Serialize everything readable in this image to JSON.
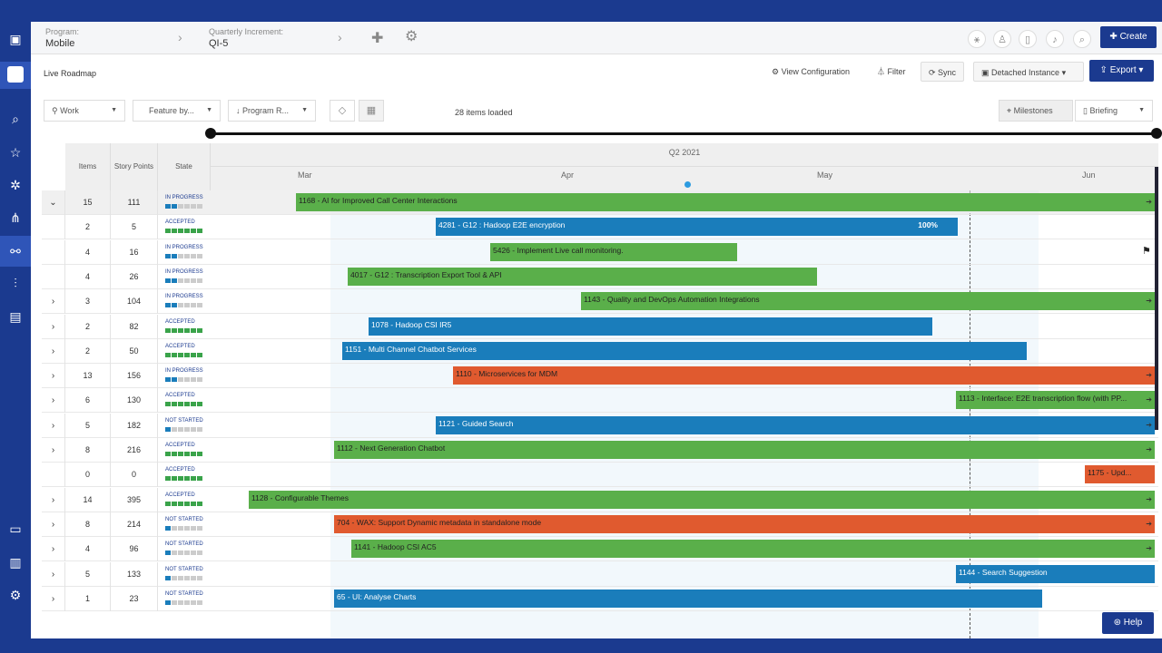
{
  "header": {
    "program_label": "Program:",
    "program_value": "Mobile",
    "qi_label": "Quarterly Increment:",
    "qi_value": "QI-5",
    "create_label": "Create"
  },
  "subheader": {
    "page_title": "Live Roadmap",
    "view_config": "View Configuration",
    "filter": "Filter",
    "sync": "Sync",
    "detached": "Detached Instance",
    "export": "Export"
  },
  "toolbar": {
    "work": "Work",
    "feature_by": "Feature by...",
    "program_r": "Program R...",
    "items_loaded": "28 items loaded",
    "milestones": "Milestones",
    "briefing": "Briefing"
  },
  "grid": {
    "col_items": "Items",
    "col_sp": "Story Points",
    "col_state": "State",
    "quarter": "Q2 2021",
    "months": [
      "Mar",
      "Apr",
      "May",
      "Jun"
    ]
  },
  "rows": [
    {
      "items": "15",
      "sp": "111",
      "state": "IN PROGRESS",
      "expand": "⌄",
      "bar": "1168 - AI for Improved Call Center Interactions",
      "color": "green"
    },
    {
      "items": "2",
      "sp": "5",
      "state": "ACCEPTED",
      "expand": "",
      "bar": "4281 - G12 : Hadoop E2E encryption",
      "color": "blue",
      "pct": "100%"
    },
    {
      "items": "4",
      "sp": "16",
      "state": "IN PROGRESS",
      "expand": "",
      "bar": "5426 - Implement Live call monitoring.",
      "color": "green"
    },
    {
      "items": "4",
      "sp": "26",
      "state": "IN PROGRESS",
      "expand": "",
      "bar": "4017 - G12 : Transcription Export Tool & API",
      "color": "green"
    },
    {
      "items": "3",
      "sp": "104",
      "state": "IN PROGRESS",
      "expand": "›",
      "bar": "1143 - Quality and DevOps Automation Integrations",
      "color": "green"
    },
    {
      "items": "2",
      "sp": "82",
      "state": "ACCEPTED",
      "expand": "›",
      "bar": "1078 - Hadoop CSI IR5",
      "color": "blue"
    },
    {
      "items": "2",
      "sp": "50",
      "state": "ACCEPTED",
      "expand": "›",
      "bar": "1151 - Multi Channel Chatbot Services",
      "color": "blue"
    },
    {
      "items": "13",
      "sp": "156",
      "state": "IN PROGRESS",
      "expand": "›",
      "bar": "1110 - Microservices for MDM",
      "color": "red"
    },
    {
      "items": "6",
      "sp": "130",
      "state": "ACCEPTED",
      "expand": "›",
      "bar": "1113 - Interface: E2E transcription flow (with PP...",
      "color": "green"
    },
    {
      "items": "5",
      "sp": "182",
      "state": "NOT STARTED",
      "expand": "›",
      "bar": "1121 - Guided Search",
      "color": "blue"
    },
    {
      "items": "8",
      "sp": "216",
      "state": "ACCEPTED",
      "expand": "›",
      "bar": "1112 - Next Generation Chatbot",
      "color": "green"
    },
    {
      "items": "0",
      "sp": "0",
      "state": "ACCEPTED",
      "expand": "",
      "bar": "1175 - Upd...",
      "color": "red"
    },
    {
      "items": "14",
      "sp": "395",
      "state": "ACCEPTED",
      "expand": "›",
      "bar": "1128 - Configurable Themes",
      "color": "green"
    },
    {
      "items": "8",
      "sp": "214",
      "state": "NOT STARTED",
      "expand": "›",
      "bar": "704 - WAX: Support Dynamic metadata in standalone mode",
      "color": "red"
    },
    {
      "items": "4",
      "sp": "96",
      "state": "NOT STARTED",
      "expand": "›",
      "bar": "1141 - Hadoop CSI AC5",
      "color": "green"
    },
    {
      "items": "5",
      "sp": "133",
      "state": "NOT STARTED",
      "expand": "›",
      "bar": "1144 - Search Suggestion",
      "color": "blue"
    },
    {
      "items": "1",
      "sp": "23",
      "state": "NOT STARTED",
      "expand": "›",
      "bar": "65 - UI: Analyse Charts",
      "color": "blue"
    }
  ],
  "help": "Help"
}
